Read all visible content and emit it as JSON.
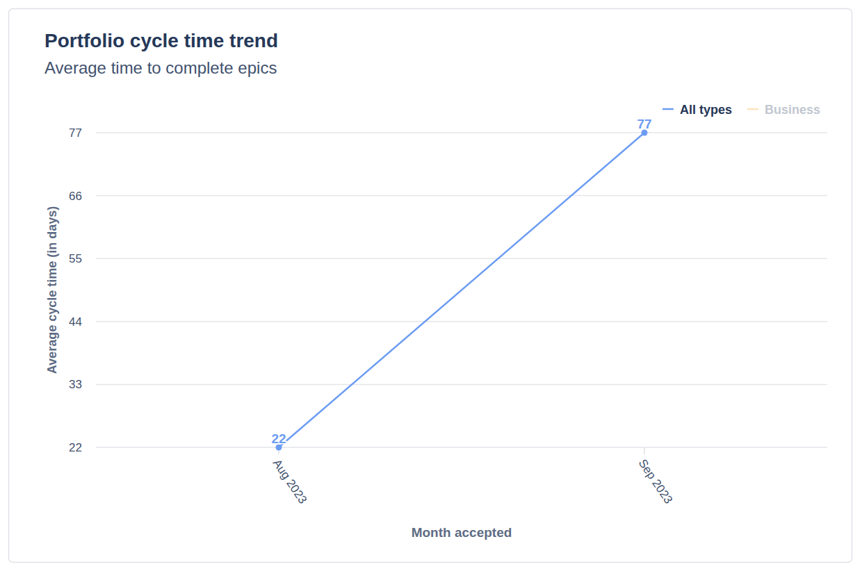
{
  "chart_data": {
    "type": "line",
    "title": "Portfolio cycle time trend",
    "subtitle": "Average time to complete epics",
    "x_label": "Month accepted",
    "y_label": "Average cycle time (in days)",
    "categories": [
      "Aug 2023",
      "Sep 2023"
    ],
    "series": [
      {
        "name": "All types",
        "color": "#6c9cf2",
        "values": [
          22,
          77
        ],
        "marker": "circle"
      },
      {
        "name": "Business",
        "color": "#fde3bd",
        "values": [
          null,
          null
        ]
      }
    ],
    "ylim": [
      22,
      77
    ],
    "yticks": [
      22,
      33,
      44,
      55,
      66,
      77
    ],
    "grid": true,
    "legend": "top-right",
    "data_labels": true
  }
}
